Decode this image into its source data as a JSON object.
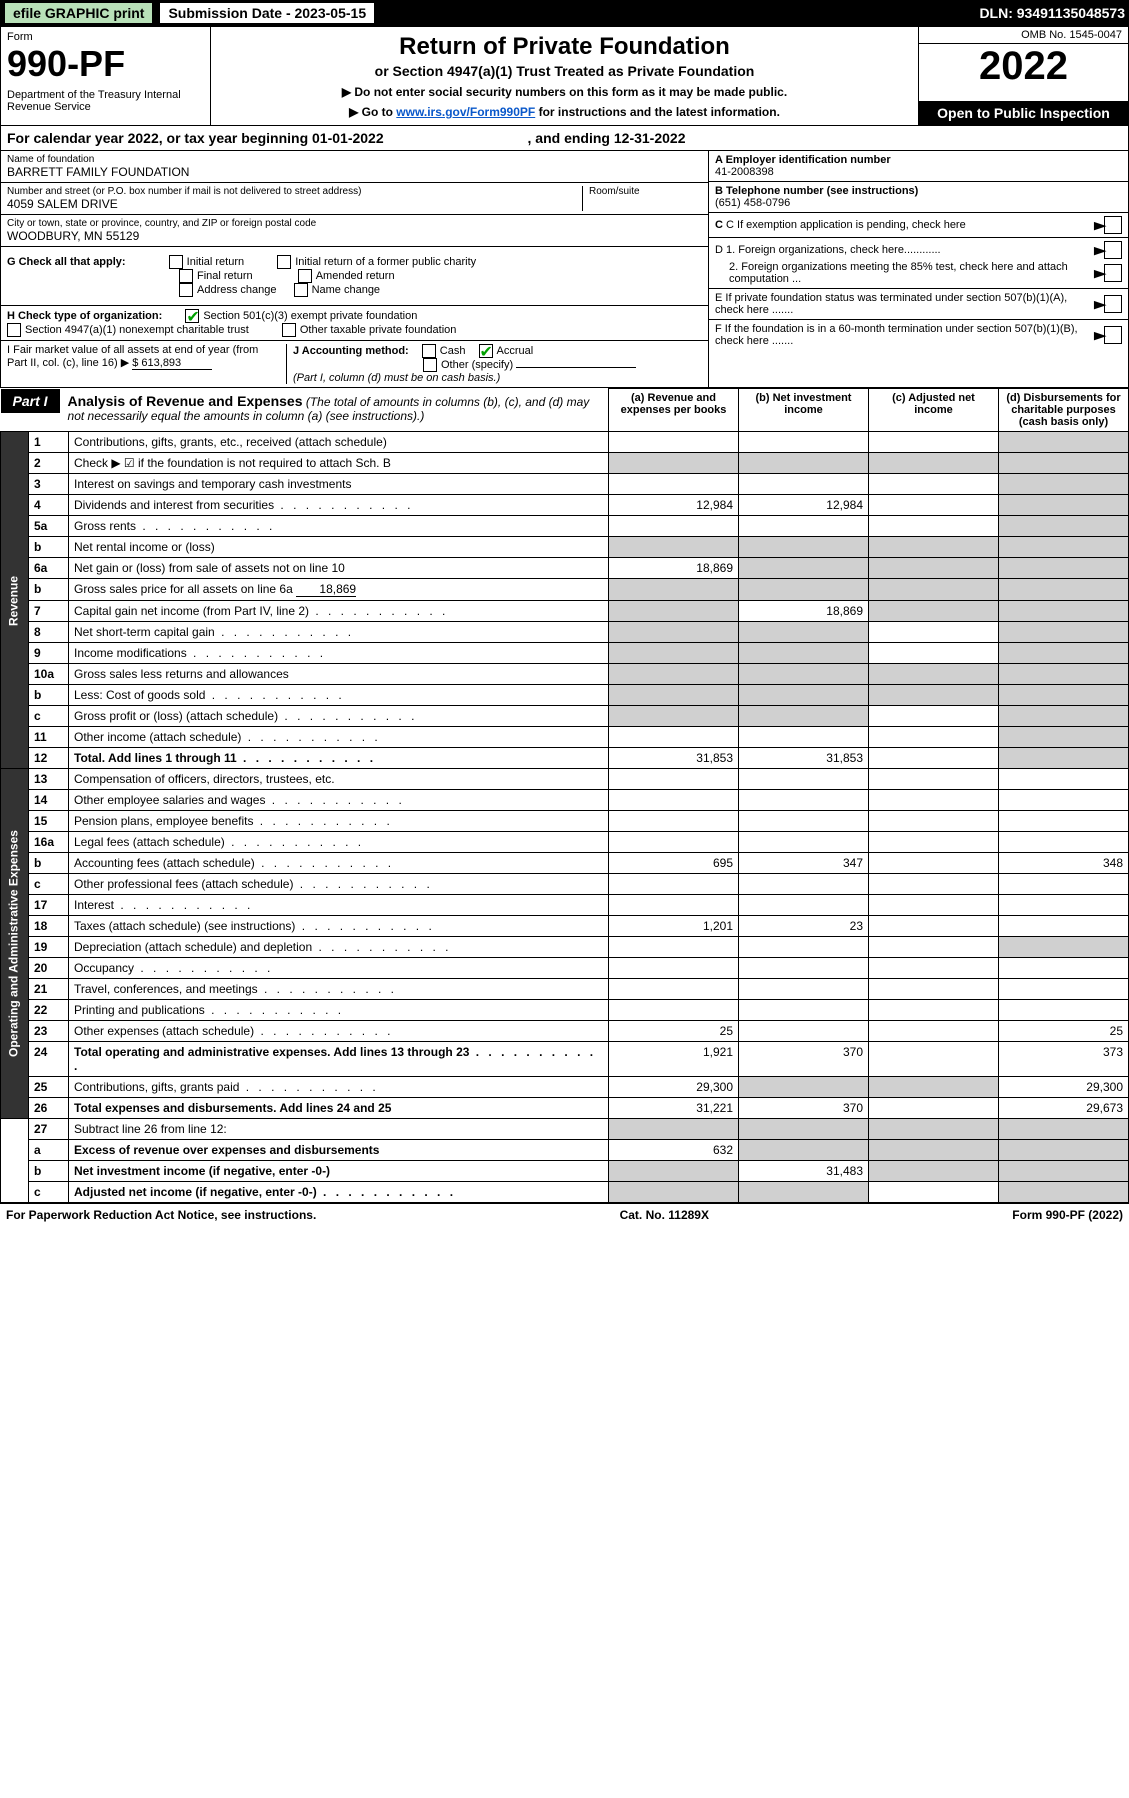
{
  "topbar": {
    "efile": "efile GRAPHIC print",
    "subdate_label": "Submission Date - 2023-05-15",
    "dln": "DLN: 93491135048573"
  },
  "header": {
    "form_word": "Form",
    "form_no": "990-PF",
    "dept": "Department of the Treasury\nInternal Revenue Service",
    "title": "Return of Private Foundation",
    "subtitle": "or Section 4947(a)(1) Trust Treated as Private Foundation",
    "note1": "▶ Do not enter social security numbers on this form as it may be made public.",
    "note2_pre": "▶ Go to ",
    "note2_link": "www.irs.gov/Form990PF",
    "note2_post": " for instructions and the latest information.",
    "omb": "OMB No. 1545-0047",
    "year": "2022",
    "open": "Open to Public Inspection"
  },
  "calyear": {
    "pre": "For calendar year 2022, or tax year beginning ",
    "begin": "01-01-2022",
    "mid": ", and ending ",
    "end": "12-31-2022"
  },
  "info": {
    "name_label": "Name of foundation",
    "name": "BARRETT FAMILY FOUNDATION",
    "addr_label": "Number and street (or P.O. box number if mail is not delivered to street address)",
    "addr": "4059 SALEM DRIVE",
    "room_label": "Room/suite",
    "city_label": "City or town, state or province, country, and ZIP or foreign postal code",
    "city": "WOODBURY, MN  55129",
    "a_label": "A Employer identification number",
    "a_val": "41-2008398",
    "b_label": "B Telephone number (see instructions)",
    "b_val": "(651) 458-0796",
    "c_label": "C If exemption application is pending, check here",
    "d1_label": "D 1. Foreign organizations, check here............",
    "d2_label": "2. Foreign organizations meeting the 85% test, check here and attach computation ...",
    "e_label": "E  If private foundation status was terminated under section 507(b)(1)(A), check here .......",
    "f_label": "F  If the foundation is in a 60-month termination under section 507(b)(1)(B), check here .......",
    "g_label": "G Check all that apply:",
    "g_opts": [
      "Initial return",
      "Initial return of a former public charity",
      "Final return",
      "Amended return",
      "Address change",
      "Name change"
    ],
    "h_label": "H Check type of organization:",
    "h_opt1": "Section 501(c)(3) exempt private foundation",
    "h_opt2": "Section 4947(a)(1) nonexempt charitable trust",
    "h_opt3": "Other taxable private foundation",
    "i_label": "I Fair market value of all assets at end of year (from Part II, col. (c), line 16) ▶",
    "i_val": "$  613,893",
    "j_label": "J Accounting method:",
    "j_cash": "Cash",
    "j_accr": "Accrual",
    "j_other": "Other (specify)",
    "j_note": "(Part I, column (d) must be on cash basis.)"
  },
  "part1": {
    "label": "Part I",
    "title": "Analysis of Revenue and Expenses",
    "title_note": "(The total of amounts in columns (b), (c), and (d) may not necessarily equal the amounts in column (a) (see instructions).)",
    "col_a": "(a)   Revenue and expenses per books",
    "col_b": "(b)   Net investment income",
    "col_c": "(c)   Adjusted net income",
    "col_d": "(d)   Disbursements for charitable purposes (cash basis only)"
  },
  "sections": {
    "revenue": "Revenue",
    "opex": "Operating and Administrative Expenses"
  },
  "rows": [
    {
      "n": "1",
      "d": "Contributions, gifts, grants, etc., received (attach schedule)",
      "a": "",
      "b": "",
      "c": "",
      "dd": "",
      "dsh": true
    },
    {
      "n": "2",
      "d": "Check ▶ ☑ if the foundation is not required to attach Sch. B",
      "a": "",
      "b": "",
      "c": "",
      "dd": "",
      "allshade": true
    },
    {
      "n": "3",
      "d": "Interest on savings and temporary cash investments",
      "a": "",
      "b": "",
      "c": "",
      "dd": "",
      "dsh": true
    },
    {
      "n": "4",
      "d": "Dividends and interest from securities",
      "a": "12,984",
      "b": "12,984",
      "c": "",
      "dd": "",
      "dsh": true,
      "dots": true
    },
    {
      "n": "5a",
      "d": "Gross rents",
      "a": "",
      "b": "",
      "c": "",
      "dd": "",
      "dsh": true,
      "dots": true
    },
    {
      "n": "b",
      "d": "Net rental income or (loss)",
      "a": "",
      "b": "",
      "c": "",
      "dd": "",
      "allshade": true,
      "inline": true
    },
    {
      "n": "6a",
      "d": "Net gain or (loss) from sale of assets not on line 10",
      "a": "18,869",
      "b": "",
      "c": "",
      "dd": "",
      "bsh": true,
      "csh": true,
      "dsh": true
    },
    {
      "n": "b",
      "d": "Gross sales price for all assets on line 6a",
      "a": "",
      "b": "",
      "c": "",
      "dd": "",
      "allshade": true,
      "inlineval": "18,869"
    },
    {
      "n": "7",
      "d": "Capital gain net income (from Part IV, line 2)",
      "a": "",
      "b": "18,869",
      "c": "",
      "dd": "",
      "ash": true,
      "csh": true,
      "dsh": true,
      "dots": true
    },
    {
      "n": "8",
      "d": "Net short-term capital gain",
      "a": "",
      "b": "",
      "c": "",
      "dd": "",
      "ash": true,
      "bsh": true,
      "dsh": true,
      "dots": true
    },
    {
      "n": "9",
      "d": "Income modifications",
      "a": "",
      "b": "",
      "c": "",
      "dd": "",
      "ash": true,
      "bsh": true,
      "dsh": true,
      "dots": true
    },
    {
      "n": "10a",
      "d": "Gross sales less returns and allowances",
      "a": "",
      "b": "",
      "c": "",
      "dd": "",
      "allshade": true,
      "inline": true
    },
    {
      "n": "b",
      "d": "Less: Cost of goods sold",
      "a": "",
      "b": "",
      "c": "",
      "dd": "",
      "allshade": true,
      "inline": true,
      "dots": true
    },
    {
      "n": "c",
      "d": "Gross profit or (loss) (attach schedule)",
      "a": "",
      "b": "",
      "c": "",
      "dd": "",
      "ash": true,
      "bsh": true,
      "dsh": true,
      "dots": true
    },
    {
      "n": "11",
      "d": "Other income (attach schedule)",
      "a": "",
      "b": "",
      "c": "",
      "dd": "",
      "dsh": true,
      "dots": true
    },
    {
      "n": "12",
      "d": "Total. Add lines 1 through 11",
      "a": "31,853",
      "b": "31,853",
      "c": "",
      "dd": "",
      "dsh": true,
      "bold": true,
      "dots": true
    }
  ],
  "oprows": [
    {
      "n": "13",
      "d": "Compensation of officers, directors, trustees, etc.",
      "a": "",
      "b": "",
      "c": "",
      "dd": ""
    },
    {
      "n": "14",
      "d": "Other employee salaries and wages",
      "a": "",
      "b": "",
      "c": "",
      "dd": "",
      "dots": true
    },
    {
      "n": "15",
      "d": "Pension plans, employee benefits",
      "a": "",
      "b": "",
      "c": "",
      "dd": "",
      "dots": true
    },
    {
      "n": "16a",
      "d": "Legal fees (attach schedule)",
      "a": "",
      "b": "",
      "c": "",
      "dd": "",
      "dots": true
    },
    {
      "n": "b",
      "d": "Accounting fees (attach schedule)",
      "a": "695",
      "b": "347",
      "c": "",
      "dd": "348",
      "dots": true
    },
    {
      "n": "c",
      "d": "Other professional fees (attach schedule)",
      "a": "",
      "b": "",
      "c": "",
      "dd": "",
      "dots": true
    },
    {
      "n": "17",
      "d": "Interest",
      "a": "",
      "b": "",
      "c": "",
      "dd": "",
      "dots": true
    },
    {
      "n": "18",
      "d": "Taxes (attach schedule) (see instructions)",
      "a": "1,201",
      "b": "23",
      "c": "",
      "dd": "",
      "dots": true
    },
    {
      "n": "19",
      "d": "Depreciation (attach schedule) and depletion",
      "a": "",
      "b": "",
      "c": "",
      "dd": "",
      "dsh": true,
      "dots": true
    },
    {
      "n": "20",
      "d": "Occupancy",
      "a": "",
      "b": "",
      "c": "",
      "dd": "",
      "dots": true
    },
    {
      "n": "21",
      "d": "Travel, conferences, and meetings",
      "a": "",
      "b": "",
      "c": "",
      "dd": "",
      "dots": true
    },
    {
      "n": "22",
      "d": "Printing and publications",
      "a": "",
      "b": "",
      "c": "",
      "dd": "",
      "dots": true
    },
    {
      "n": "23",
      "d": "Other expenses (attach schedule)",
      "a": "25",
      "b": "",
      "c": "",
      "dd": "25",
      "dots": true
    },
    {
      "n": "24",
      "d": "Total operating and administrative expenses. Add lines 13 through 23",
      "a": "1,921",
      "b": "370",
      "c": "",
      "dd": "373",
      "bold": true,
      "dots": true
    },
    {
      "n": "25",
      "d": "Contributions, gifts, grants paid",
      "a": "29,300",
      "b": "",
      "c": "",
      "dd": "29,300",
      "bsh": true,
      "csh": true,
      "dots": true
    },
    {
      "n": "26",
      "d": "Total expenses and disbursements. Add lines 24 and 25",
      "a": "31,221",
      "b": "370",
      "c": "",
      "dd": "29,673",
      "bold": true
    }
  ],
  "botrows": [
    {
      "n": "27",
      "d": "Subtract line 26 from line 12:",
      "a": "",
      "b": "",
      "c": "",
      "dd": "",
      "allshade": true
    },
    {
      "n": "a",
      "d": "Excess of revenue over expenses and disbursements",
      "a": "632",
      "b": "",
      "c": "",
      "dd": "",
      "bsh": true,
      "csh": true,
      "dsh": true,
      "bold": true
    },
    {
      "n": "b",
      "d": "Net investment income (if negative, enter -0-)",
      "a": "",
      "b": "31,483",
      "c": "",
      "dd": "",
      "ash": true,
      "csh": true,
      "dsh": true,
      "bold": true
    },
    {
      "n": "c",
      "d": "Adjusted net income (if negative, enter -0-)",
      "a": "",
      "b": "",
      "c": "",
      "dd": "",
      "ash": true,
      "bsh": true,
      "dsh": true,
      "bold": true,
      "dots": true
    }
  ],
  "footer": {
    "left": "For Paperwork Reduction Act Notice, see instructions.",
    "mid": "Cat. No. 11289X",
    "right": "Form 990-PF (2022)"
  }
}
